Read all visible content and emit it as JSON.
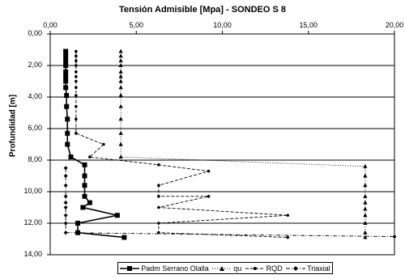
{
  "chart_data": {
    "type": "line",
    "title": "Tensión Admisible [Mpa] - SONDEO S 8",
    "ylabel": "Profundidad [m]",
    "xlabel": "",
    "xlim": [
      0,
      20
    ],
    "ylim": [
      0,
      14
    ],
    "x_ticks": [
      "0,00",
      "5,00",
      "10,00",
      "15,00",
      "20,00"
    ],
    "y_ticks": [
      "0,00",
      "2,00",
      "4,00",
      "6,00",
      "8,00",
      "10,00",
      "12,00",
      "14,00"
    ],
    "grid": "horizontal",
    "legend_position": "bottom",
    "series": [
      {
        "name": "Padm Serrano Olalla",
        "marker": "square",
        "line": "solid",
        "points": [
          [
            0.9,
            1.1
          ],
          [
            0.9,
            1.4
          ],
          [
            0.9,
            1.7
          ],
          [
            0.9,
            2.0
          ],
          [
            0.9,
            2.4
          ],
          [
            0.9,
            2.7
          ],
          [
            0.9,
            3.0
          ],
          [
            0.9,
            3.4
          ],
          [
            0.95,
            3.9
          ],
          [
            0.95,
            4.6
          ],
          [
            1.0,
            5.4
          ],
          [
            1.0,
            6.3
          ],
          [
            1.0,
            7.0
          ],
          [
            1.2,
            7.8
          ],
          [
            2.0,
            8.3
          ],
          [
            2.0,
            9.0
          ],
          [
            2.0,
            9.6
          ],
          [
            2.0,
            10.3
          ],
          [
            2.3,
            10.7
          ],
          [
            1.9,
            11.0
          ],
          [
            3.9,
            11.5
          ],
          [
            1.6,
            12.0
          ],
          [
            1.6,
            12.6
          ],
          [
            4.3,
            12.9
          ]
        ]
      },
      {
        "name": "qu",
        "marker": "triangle",
        "line": "dotted",
        "points": [
          [
            4.1,
            1.1
          ],
          [
            4.1,
            1.4
          ],
          [
            4.1,
            1.7
          ],
          [
            4.1,
            2.0
          ],
          [
            4.1,
            2.4
          ],
          [
            4.1,
            2.7
          ],
          [
            4.1,
            3.0
          ],
          [
            4.1,
            3.4
          ],
          [
            4.1,
            3.9
          ],
          [
            4.1,
            4.6
          ],
          [
            4.1,
            5.4
          ],
          [
            4.1,
            6.3
          ],
          [
            4.1,
            7.0
          ],
          [
            4.1,
            7.8
          ],
          [
            18.3,
            8.4
          ],
          [
            18.3,
            9.0
          ],
          [
            18.3,
            9.6
          ],
          [
            18.3,
            10.3
          ],
          [
            18.3,
            10.7
          ],
          [
            18.3,
            11.1
          ],
          [
            18.3,
            11.5
          ],
          [
            18.3,
            12.0
          ],
          [
            18.3,
            12.6
          ],
          [
            18.3,
            12.9
          ]
        ]
      },
      {
        "name": "RQD",
        "marker": "dot",
        "line": "dashed",
        "points": [
          [
            1.5,
            1.1
          ],
          [
            1.5,
            1.4
          ],
          [
            1.5,
            1.7
          ],
          [
            1.5,
            2.0
          ],
          [
            1.5,
            2.4
          ],
          [
            1.5,
            2.7
          ],
          [
            1.5,
            3.0
          ],
          [
            1.5,
            3.4
          ],
          [
            1.5,
            3.9
          ],
          [
            1.5,
            4.6
          ],
          [
            1.5,
            5.4
          ],
          [
            1.5,
            6.3
          ],
          [
            3.1,
            7.0
          ],
          [
            2.3,
            7.8
          ],
          [
            6.3,
            8.3
          ],
          [
            9.2,
            8.7
          ],
          [
            6.3,
            9.6
          ],
          [
            6.3,
            10.3
          ],
          [
            9.2,
            10.3
          ],
          [
            6.3,
            11.0
          ],
          [
            13.8,
            11.5
          ],
          [
            6.3,
            12.0
          ],
          [
            6.3,
            12.6
          ],
          [
            13.8,
            12.9
          ]
        ]
      },
      {
        "name": "Triaxial",
        "marker": "diamond",
        "line": "dashdot",
        "points": [
          [
            0.9,
            8.5
          ],
          [
            0.9,
            9.0
          ],
          [
            0.9,
            9.6
          ],
          [
            0.9,
            10.3
          ],
          [
            0.9,
            10.7
          ],
          [
            0.9,
            11.0
          ],
          [
            0.9,
            11.5
          ],
          [
            0.9,
            12.0
          ],
          [
            0.9,
            12.6
          ],
          [
            20.0,
            12.85
          ]
        ]
      }
    ]
  }
}
